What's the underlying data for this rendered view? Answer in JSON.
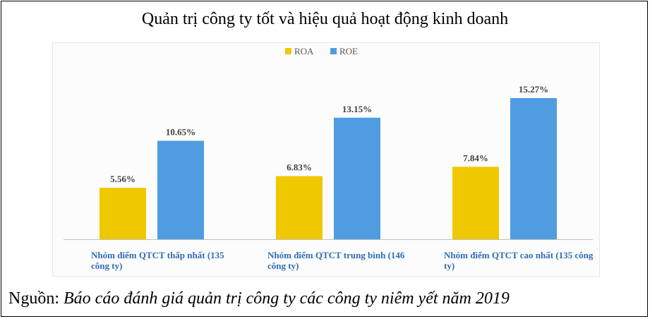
{
  "title": "Quản trị công ty tốt và hiệu quả hoạt động kinh doanh",
  "source": {
    "prefix": "Nguồn: ",
    "text": "Báo cáo đánh giá quản trị công ty các công ty niêm yết năm 2019"
  },
  "chart_data": {
    "type": "bar",
    "title": "Quản trị công ty tốt và hiệu quả hoạt động kinh doanh",
    "xlabel": "",
    "ylabel": "",
    "ylim": [
      0,
      16
    ],
    "grid": false,
    "legend": "top-center",
    "categories": [
      [
        "Nhóm điểm QTCT thấp nhất (135",
        "công ty)"
      ],
      [
        "Nhóm điểm QTCT trung bình (146",
        "công ty)"
      ],
      [
        "Nhóm điểm QTCT cao nhất (135 công",
        "ty)"
      ]
    ],
    "series": [
      {
        "name": "ROA",
        "color": "#f0c800",
        "values": [
          5.56,
          6.83,
          7.84
        ],
        "labels": [
          "5.56%",
          "6.83%",
          "7.84%"
        ]
      },
      {
        "name": "ROE",
        "color": "#4f9de0",
        "values": [
          10.65,
          13.15,
          15.27
        ],
        "labels": [
          "10.65%",
          "13.15%",
          "15.27%"
        ]
      }
    ]
  }
}
